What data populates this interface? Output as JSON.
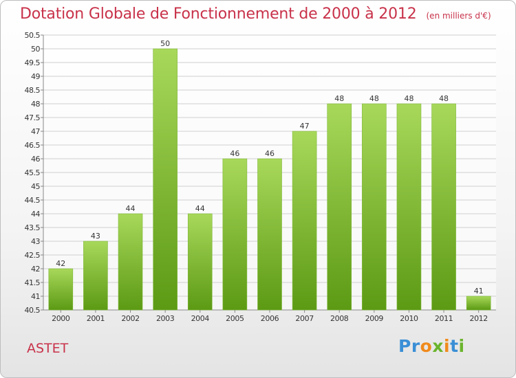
{
  "title": "Dotation Globale de Fonctionnement de 2000 à 2012",
  "subtitle": "(en milliers d'€)",
  "place": "ASTET",
  "logo": {
    "letters": [
      "P",
      "r",
      "o",
      "x",
      "i",
      "t",
      "i"
    ],
    "colors": [
      "#3a8fd6",
      "#3a8fd6",
      "#f08a1c",
      "#6ab42c",
      "#f08a1c",
      "#3a8fd6",
      "#6ab42c"
    ]
  },
  "colors": {
    "bar_top": "#a8d85a",
    "bar_bottom": "#5c9a14",
    "title": "#c8324a",
    "grid": "#cfcfcf"
  },
  "chart_data": {
    "type": "bar",
    "categories": [
      "2000",
      "2001",
      "2002",
      "2003",
      "2004",
      "2005",
      "2006",
      "2007",
      "2008",
      "2009",
      "2010",
      "2011",
      "2012"
    ],
    "values": [
      42,
      43,
      44,
      50,
      44,
      46,
      46,
      47,
      48,
      48,
      48,
      48,
      41
    ],
    "ylim": [
      40.5,
      50.5
    ],
    "yticks": [
      "40.5",
      "41",
      "41.5",
      "42",
      "42.5",
      "43",
      "43.5",
      "44",
      "44.5",
      "45",
      "45.5",
      "46",
      "46.5",
      "47",
      "47.5",
      "48",
      "48.5",
      "49",
      "49.5",
      "50",
      "50.5"
    ],
    "grid": true,
    "data_labels": true
  }
}
